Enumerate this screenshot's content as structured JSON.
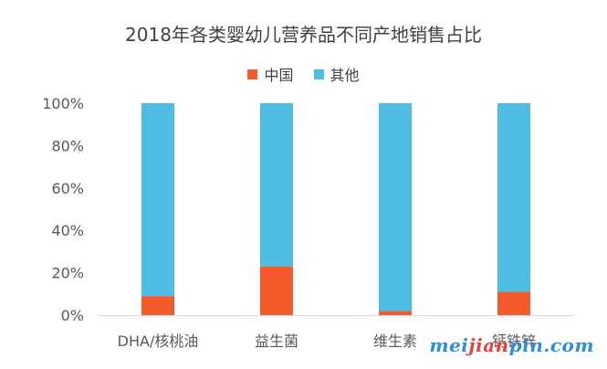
{
  "chart_data": {
    "type": "bar",
    "stacked": true,
    "title": "2018年各类婴幼儿营养品不同产地销售占比",
    "categories": [
      "DHA/核桃油",
      "益生菌",
      "维生素",
      "钙铁锌"
    ],
    "series": [
      {
        "name": "中国",
        "color": "#f55a2c",
        "values": [
          9,
          23,
          2,
          11
        ]
      },
      {
        "name": "其他",
        "color": "#4dbde6",
        "values": [
          91,
          77,
          98,
          89
        ]
      }
    ],
    "y_ticks": [
      "0%",
      "20%",
      "40%",
      "60%",
      "80%",
      "100%"
    ],
    "ylim": [
      0,
      100
    ],
    "legend_position": "top",
    "grid": false
  },
  "watermark": {
    "pre": "mei",
    "accent": "jian",
    "post": "pin.com"
  }
}
